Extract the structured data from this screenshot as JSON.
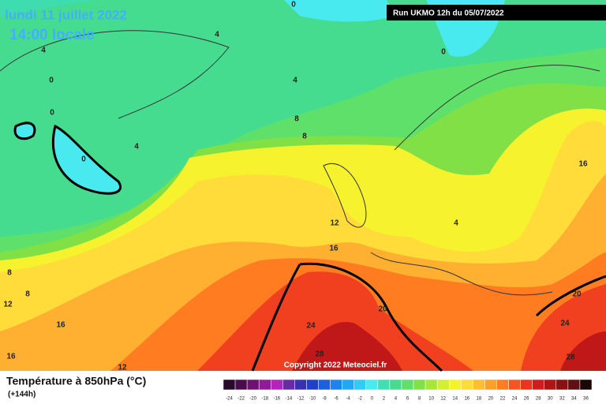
{
  "header": {
    "date": "lundi 11 juillet 2022",
    "time": "14:00 locale",
    "run": "Run UKMO 12h du 05/07/2022"
  },
  "copyright": "Copyright 2022 Meteociel.fr",
  "footer": {
    "title": "Température à 850hPa (°C)",
    "lead": "(+144h)"
  },
  "map": {
    "contour_labels": [
      0,
      0,
      4,
      4,
      0,
      0,
      4,
      8,
      8,
      4,
      0,
      16,
      12,
      4,
      16,
      8,
      8,
      12,
      20,
      20,
      24,
      24,
      16,
      16,
      28,
      28,
      12
    ]
  },
  "colorbar": {
    "ticks": [
      -24,
      -22,
      -20,
      -18,
      -16,
      -14,
      -12,
      -10,
      -8,
      -6,
      -4,
      -2,
      0,
      2,
      4,
      6,
      8,
      10,
      12,
      14,
      16,
      18,
      20,
      22,
      24,
      26,
      28,
      30,
      32,
      34,
      36
    ],
    "colors": [
      "#2a0a2a",
      "#4a0c4c",
      "#6e1272",
      "#921a98",
      "#b424bc",
      "#6a2aa8",
      "#3a30b0",
      "#2040c8",
      "#1c60dc",
      "#1c84ec",
      "#20a8f4",
      "#30ccf8",
      "#48eaf0",
      "#3ee0b4",
      "#46dc90",
      "#5ee06a",
      "#80e046",
      "#a8e638",
      "#d4ee30",
      "#f6f22e",
      "#ffdc3a",
      "#ffc030",
      "#ffa028",
      "#ff7c20",
      "#f85420",
      "#e83420",
      "#d01c1c",
      "#b01414",
      "#8c1010",
      "#601010",
      "#1a0808"
    ]
  }
}
